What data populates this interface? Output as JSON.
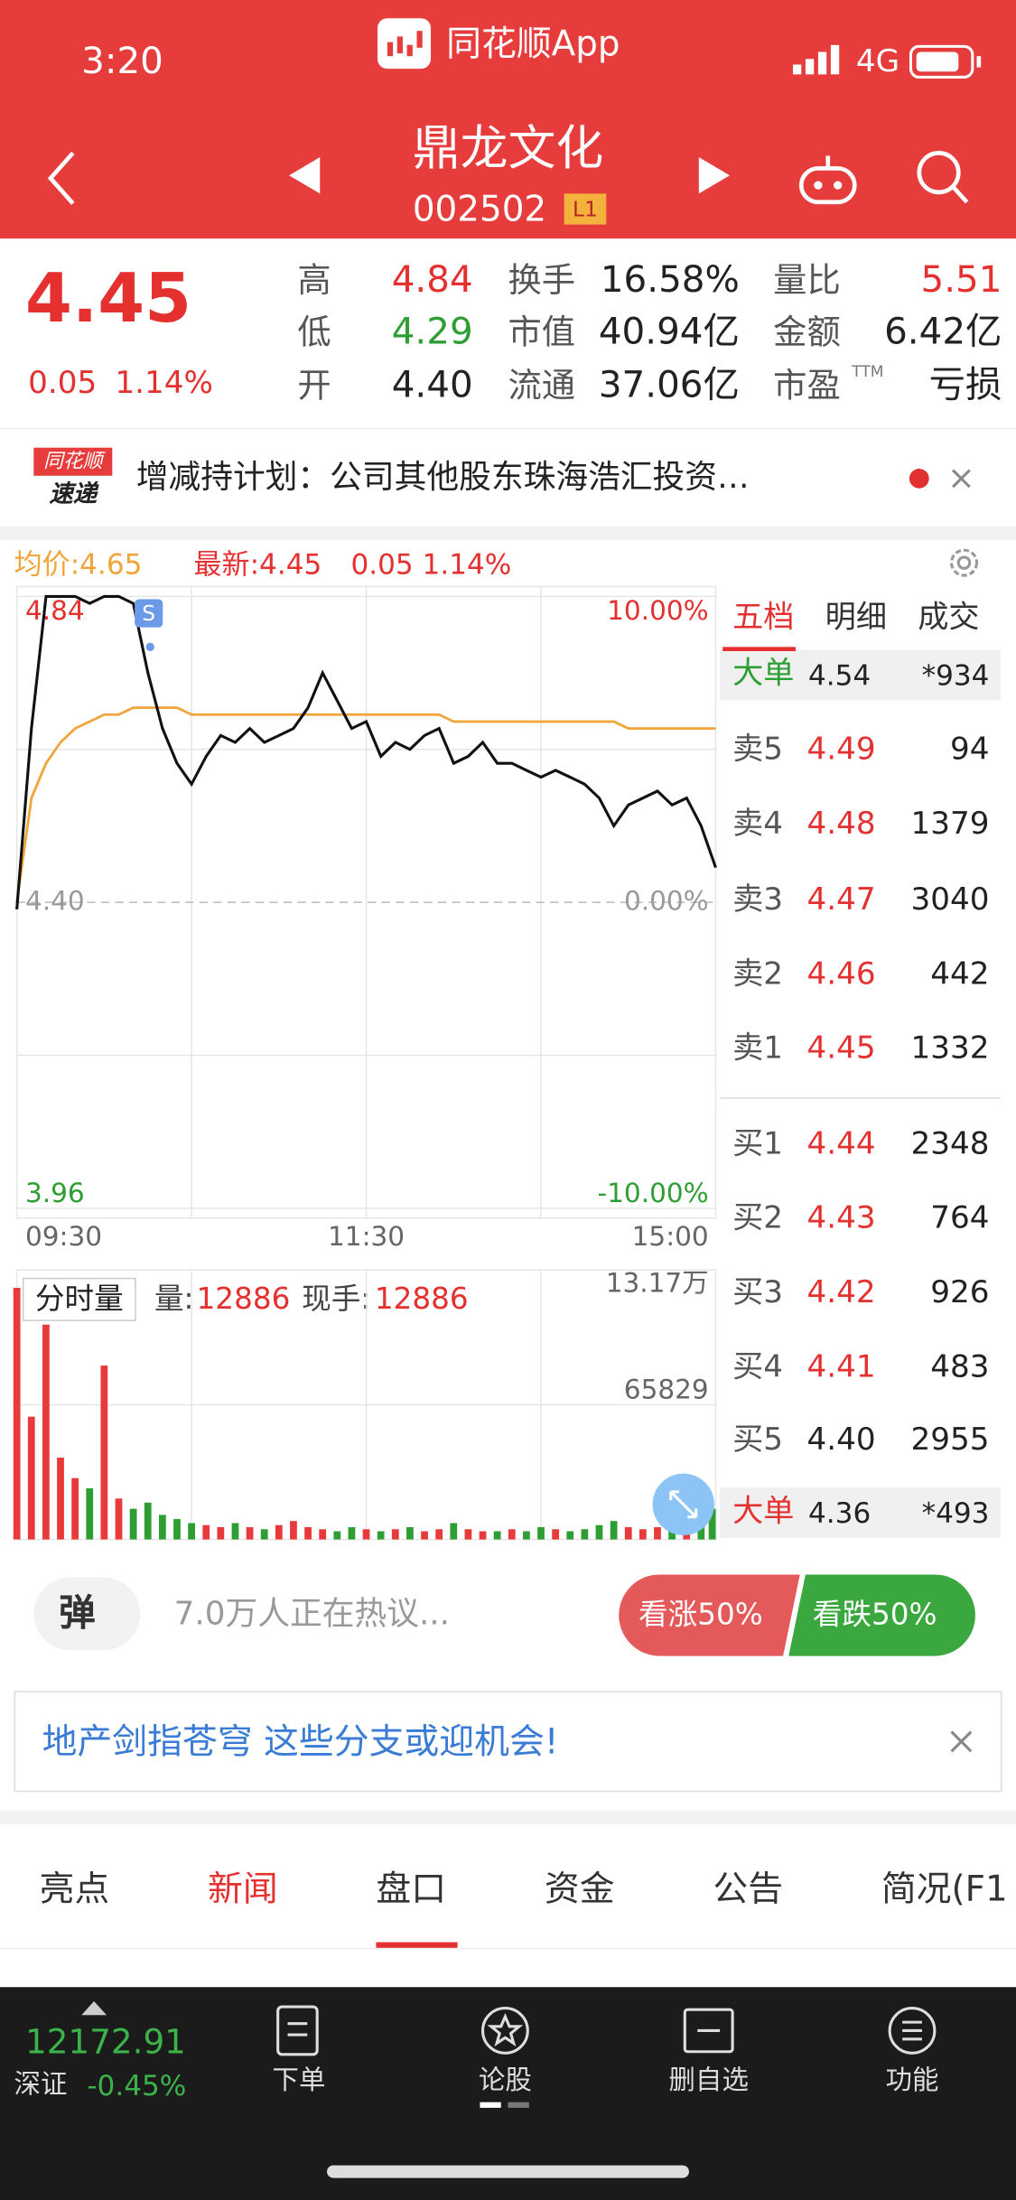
{
  "status_bar": {
    "time": "3:20",
    "app": "同花顺App",
    "network": "4G"
  },
  "header": {
    "name": "鼎龙文化",
    "code": "002502",
    "level": "L1"
  },
  "quote": {
    "price": "4.45",
    "change": "0.05",
    "change_pct": "1.14%",
    "stats": [
      {
        "label": "高",
        "value": "4.84"
      },
      {
        "label": "低",
        "value": "4.29"
      },
      {
        "label": "开",
        "value": "4.40"
      },
      {
        "label": "换手",
        "value": "16.58%"
      },
      {
        "label": "市值",
        "value": "40.94亿"
      },
      {
        "label": "流通",
        "value": "37.06亿"
      },
      {
        "label": "量比",
        "value": "5.51"
      },
      {
        "label": "金额",
        "value": "6.42亿"
      },
      {
        "label": "市盈",
        "sup": "TTM",
        "value": "亏损"
      }
    ]
  },
  "news_flash": {
    "badge_top": "同花顺",
    "badge_bottom": "速递",
    "text": "增减持计划：公司其他股东珠海浩汇投资…"
  },
  "chart_data": [
    {
      "type": "line",
      "avg_label": "均价:4.65",
      "latest_label": "最新:4.45",
      "latest_change": "0.05 1.14%",
      "marker": "S",
      "x": [
        0,
        5,
        10,
        15,
        20,
        25,
        30,
        35,
        40,
        45,
        50,
        55,
        60,
        65,
        70,
        75,
        80,
        85,
        90,
        95,
        100,
        105,
        110,
        115,
        120,
        125,
        130,
        135,
        140,
        145,
        150,
        155,
        160,
        165,
        170,
        175,
        180,
        185,
        190,
        195,
        200,
        205,
        210,
        215,
        220,
        225,
        230,
        235,
        240
      ],
      "xlim": [
        0,
        240
      ],
      "xticks": [
        {
          "value": 0,
          "label": "09:30"
        },
        {
          "value": 120,
          "label": "11:30"
        },
        {
          "value": 240,
          "label": "15:00"
        }
      ],
      "ylim": [
        3.96,
        4.84
      ],
      "yticks": [
        3.96,
        {
          "value": 4.4,
          "label": "4.40"
        },
        4.84
      ],
      "y2lim": [
        -10,
        10
      ],
      "y2ticks": [
        {
          "value": -10,
          "label": "-10.00%"
        },
        {
          "value": 0,
          "label": "0.00%"
        },
        {
          "value": 10,
          "label": "10.00%"
        }
      ],
      "series": [
        {
          "name": "最新",
          "color": "#111111",
          "values": [
            4.39,
            4.65,
            4.84,
            4.84,
            4.84,
            4.83,
            4.84,
            4.84,
            4.83,
            4.73,
            4.65,
            4.6,
            4.57,
            4.61,
            4.64,
            4.63,
            4.65,
            4.63,
            4.64,
            4.65,
            4.68,
            4.73,
            4.69,
            4.65,
            4.66,
            4.61,
            4.63,
            4.62,
            4.64,
            4.65,
            4.6,
            4.61,
            4.63,
            4.6,
            4.6,
            4.59,
            4.58,
            4.59,
            4.58,
            4.57,
            4.55,
            4.51,
            4.54,
            4.55,
            4.56,
            4.54,
            4.55,
            4.51,
            4.45
          ]
        },
        {
          "name": "均价",
          "color": "#f0a43a",
          "values": [
            4.4,
            4.55,
            4.6,
            4.63,
            4.65,
            4.66,
            4.67,
            4.67,
            4.68,
            4.68,
            4.68,
            4.68,
            4.67,
            4.67,
            4.67,
            4.67,
            4.67,
            4.67,
            4.67,
            4.67,
            4.67,
            4.67,
            4.67,
            4.67,
            4.67,
            4.67,
            4.67,
            4.67,
            4.67,
            4.67,
            4.66,
            4.66,
            4.66,
            4.66,
            4.66,
            4.66,
            4.66,
            4.66,
            4.66,
            4.66,
            4.66,
            4.66,
            4.65,
            4.65,
            4.65,
            4.65,
            4.65,
            4.65,
            4.65
          ]
        }
      ]
    },
    {
      "type": "bar",
      "title": "分时量",
      "last_volume_label": "量:",
      "last_volume": 12886,
      "current_hand_label": "现手:",
      "current_hand": 12886,
      "up_color": "#e83a3a",
      "down_color": "#2e9e33",
      "x": [
        0,
        5,
        10,
        15,
        20,
        25,
        30,
        35,
        40,
        45,
        50,
        55,
        60,
        65,
        70,
        75,
        80,
        85,
        90,
        95,
        100,
        105,
        110,
        115,
        120,
        125,
        130,
        135,
        140,
        145,
        150,
        155,
        160,
        165,
        170,
        175,
        180,
        185,
        190,
        195,
        200,
        205,
        210,
        215,
        220,
        225,
        230,
        235,
        240
      ],
      "xlim": [
        0,
        240
      ],
      "values": [
        123000,
        60000,
        105000,
        40000,
        30000,
        25000,
        85000,
        20000,
        15000,
        18000,
        12000,
        10000,
        8000,
        7000,
        6000,
        8000,
        6000,
        5000,
        7000,
        9000,
        6000,
        5000,
        4000,
        6000,
        5000,
        4000,
        5000,
        6000,
        4000,
        5000,
        8000,
        5000,
        4000,
        4000,
        5000,
        4000,
        6000,
        5000,
        4000,
        5000,
        7000,
        9000,
        6000,
        5000,
        6000,
        8000,
        10000,
        12000,
        15000
      ],
      "ylim": [
        0,
        131700
      ],
      "yticks": [
        65829,
        {
          "value": 131700,
          "label": "13.17万"
        }
      ]
    }
  ],
  "order_book": {
    "tabs": [
      "五档",
      "明细",
      "成交"
    ],
    "big_sell": {
      "label": "大单",
      "price": "4.54",
      "volume": "*934"
    },
    "rows": [
      [
        "卖5",
        "4.49",
        "94"
      ],
      [
        "卖4",
        "4.48",
        "1379"
      ],
      [
        "卖3",
        "4.47",
        "3040"
      ],
      [
        "卖2",
        "4.46",
        "442"
      ],
      [
        "卖1",
        "4.45",
        "1332"
      ],
      [
        "买1",
        "4.44",
        "2348"
      ],
      [
        "买2",
        "4.43",
        "764"
      ],
      [
        "买3",
        "4.42",
        "926"
      ],
      [
        "买4",
        "4.41",
        "483"
      ],
      [
        "买5",
        "4.40",
        "2955"
      ]
    ],
    "big_buy": {
      "label": "大单",
      "price": "4.36",
      "volume": "*493"
    }
  },
  "sentiment": {
    "button": "弹",
    "text": "7.0万人正在热议...",
    "bull": "看涨50%",
    "bear": "看跌50%"
  },
  "banner": {
    "text": "地产剑指苍穹 这些分支或迎机会!"
  },
  "tabs": [
    "亮点",
    "新闻",
    "盘口",
    "资金",
    "公告",
    "简况(F1"
  ],
  "index": {
    "value": "12172.91",
    "name": "深证",
    "change": "-0.45%"
  },
  "nav": [
    "下单",
    "论股",
    "删自选",
    "功能"
  ]
}
